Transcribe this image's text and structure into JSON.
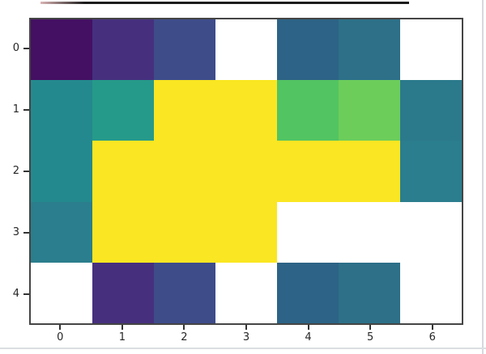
{
  "figure": {
    "background": "#ffffff",
    "top_accent_color": "#1c1c1c",
    "edge_line_color": "#d6d9db",
    "spine_color": "#454545",
    "tick_color": "#333333",
    "tick_label_color": "#262626"
  },
  "chart_data": {
    "type": "heatmap",
    "colormap": "viridis",
    "rows": 5,
    "cols": 7,
    "x_tick_labels": [
      "0",
      "1",
      "2",
      "3",
      "4",
      "5",
      "6"
    ],
    "y_tick_labels": [
      "0",
      "1",
      "2",
      "3",
      "4"
    ],
    "missing_cell_color": "#ffffff",
    "cell_colors": [
      [
        "#441063",
        "#46307e",
        "#3e4c8a",
        null,
        "#2d6386",
        "#2d7088",
        null
      ],
      [
        "#24898e",
        "#269a8a",
        "#fae622",
        "#fae622",
        "#52c462",
        "#6ccd5b",
        "#2b7a8c"
      ],
      [
        "#24898e",
        "#fae622",
        "#fae622",
        "#fae622",
        "#fae622",
        "#fae622",
        "#2a7e8e"
      ],
      [
        "#2b7e8d",
        "#fae622",
        "#fae622",
        "#fae622",
        null,
        null,
        null
      ],
      [
        null,
        "#46307e",
        "#3e4c8a",
        null,
        "#2d6386",
        "#2d7088",
        null
      ]
    ],
    "values_normalized": [
      [
        0.05,
        0.15,
        0.25,
        null,
        0.38,
        0.43,
        null
      ],
      [
        0.52,
        0.6,
        1.0,
        1.0,
        0.72,
        0.77,
        0.45
      ],
      [
        0.52,
        1.0,
        1.0,
        1.0,
        1.0,
        1.0,
        0.47
      ],
      [
        0.47,
        1.0,
        1.0,
        1.0,
        null,
        null,
        null
      ],
      [
        null,
        0.15,
        0.25,
        null,
        0.38,
        0.43,
        null
      ]
    ],
    "title": "",
    "xlabel": "",
    "ylabel": "",
    "grid": false,
    "legend": "none"
  }
}
